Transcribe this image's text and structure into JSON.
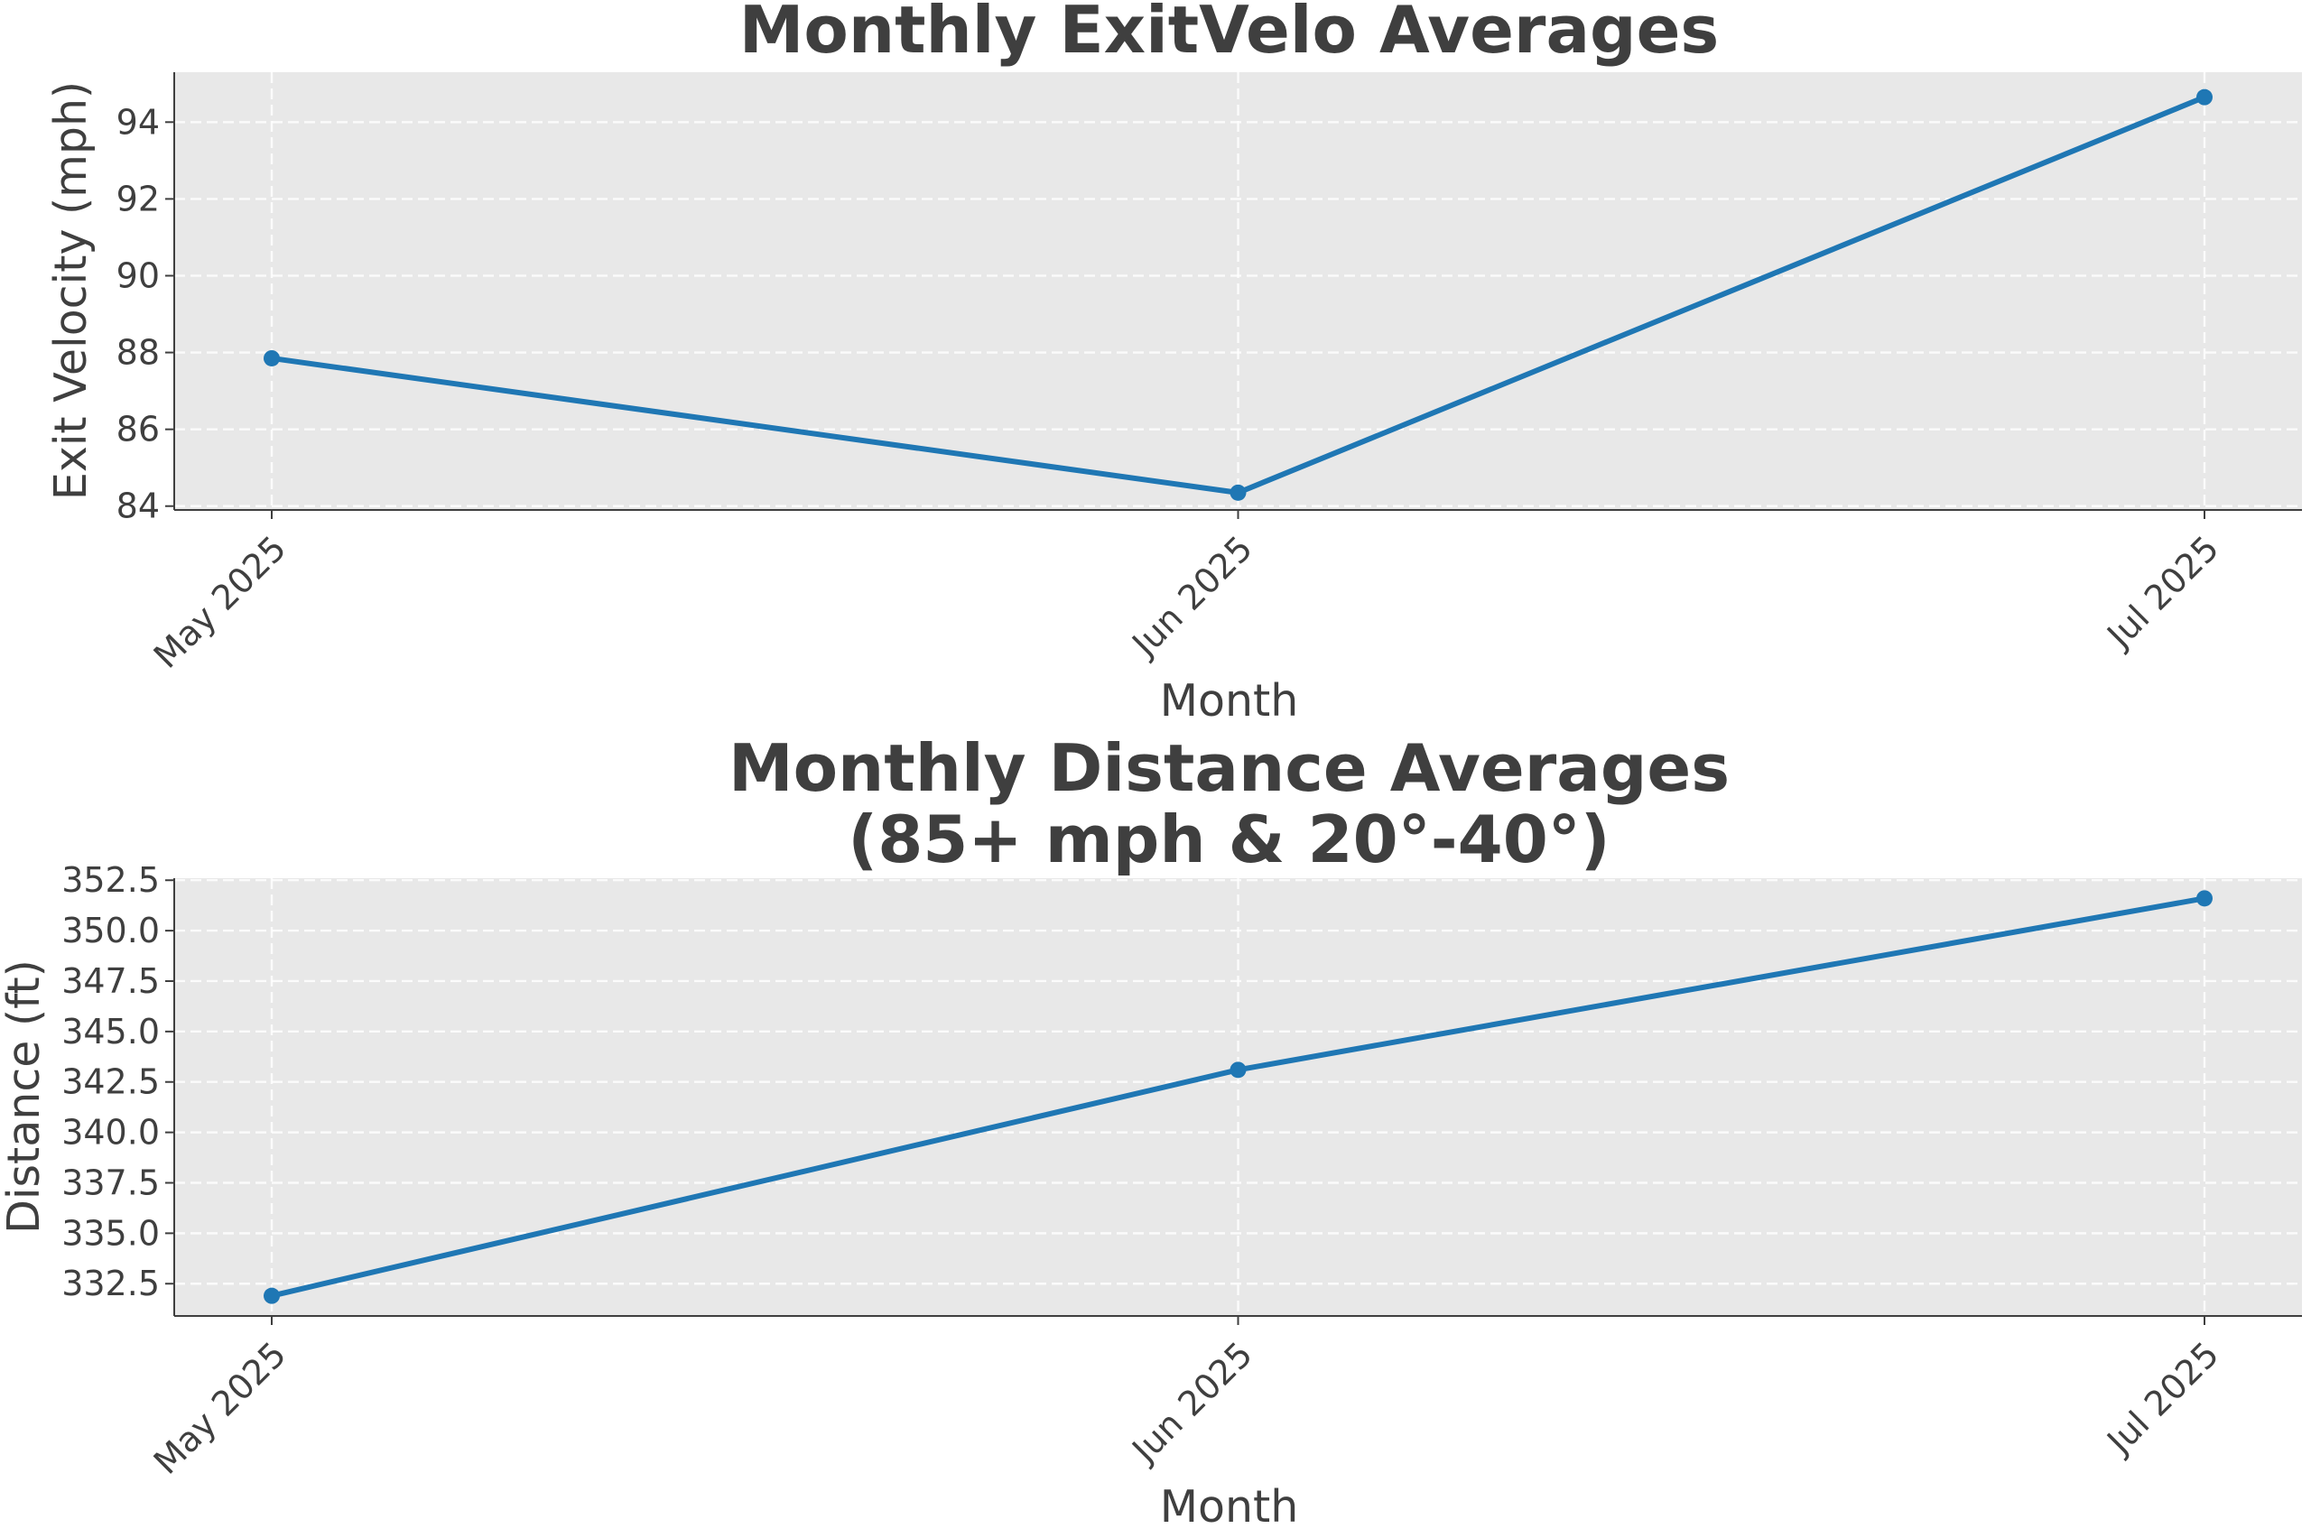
{
  "colors": {
    "series": "#1f77b4",
    "panel_bg": "#e8e8e8",
    "text": "#3f3f3f"
  },
  "chart_data": [
    {
      "type": "line",
      "title": "Monthly ExitVelo Averages",
      "xlabel": "Month",
      "ylabel": "Exit Velocity (mph)",
      "x": [
        "May 2025",
        "Jun 2025",
        "Jul 2025"
      ],
      "series": [
        {
          "values": [
            87.85,
            84.35,
            94.65
          ]
        }
      ],
      "ylim": [
        83.9,
        95.3
      ],
      "yticks": [
        84,
        86,
        88,
        90,
        92,
        94
      ],
      "ytick_labels": [
        "84",
        "86",
        "88",
        "90",
        "92",
        "94"
      ],
      "grid": true,
      "markers": true
    },
    {
      "type": "line",
      "title": "Monthly Distance Averages\n(85+ mph & 20°-40°)",
      "xlabel": "Month",
      "ylabel": "Distance (ft)",
      "x": [
        "May 2025",
        "Jun 2025",
        "Jul 2025"
      ],
      "series": [
        {
          "values": [
            331.9,
            343.1,
            351.6
          ]
        }
      ],
      "ylim": [
        330.9,
        352.6
      ],
      "yticks": [
        332.5,
        335.0,
        337.5,
        340.0,
        342.5,
        345.0,
        347.5,
        350.0,
        352.5
      ],
      "ytick_labels": [
        "332.5",
        "335.0",
        "337.5",
        "340.0",
        "342.5",
        "345.0",
        "347.5",
        "350.0",
        "352.5"
      ],
      "grid": true,
      "markers": true
    }
  ]
}
